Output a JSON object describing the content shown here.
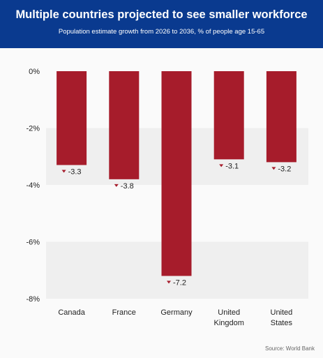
{
  "header": {
    "title": "Multiple countries projected to see smaller workforce",
    "subtitle": "Population estimate growth from 2026 to 2036, % of people age 15-65"
  },
  "source": "Source: World Bank",
  "colors": {
    "header_bg": "#0a3a8f",
    "bar": "#a61c2b",
    "band": "#efefef",
    "axis_text": "#222222"
  },
  "chart_data": {
    "type": "bar",
    "categories": [
      [
        "Canada"
      ],
      [
        "France"
      ],
      [
        "Germany"
      ],
      [
        "United",
        "Kingdom"
      ],
      [
        "United",
        "States"
      ]
    ],
    "values": [
      -3.3,
      -3.8,
      -7.2,
      -3.1,
      -3.2
    ],
    "value_labels": [
      "-3.3",
      "-3.8",
      "-7.2",
      "-3.1",
      "-3.2"
    ],
    "yticks": [
      0,
      -2,
      -4,
      -6,
      -8
    ],
    "ytick_labels": [
      "0%",
      "-2%",
      "-4%",
      "-6%",
      "-8%"
    ],
    "ylim": [
      -8,
      0
    ],
    "grid": "alternating horizontal bands",
    "legend": "none"
  }
}
